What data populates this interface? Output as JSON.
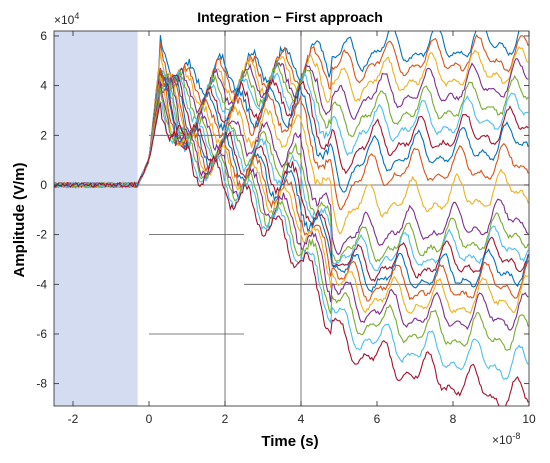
{
  "chart_data": {
    "type": "line",
    "title": "Integration −  First approach",
    "xlabel": "Time (s)",
    "ylabel": "Amplitude (V/m)",
    "x_multiplier": "×10",
    "x_exponent": "-8",
    "y_multiplier": "×10",
    "y_exponent": "4",
    "xlim": [
      -2.5,
      10
    ],
    "ylim": [
      -8.9,
      6.2
    ],
    "x_ticks": [
      -2,
      0,
      2,
      4,
      6,
      8,
      10
    ],
    "y_ticks": [
      -8,
      -6,
      -4,
      -2,
      0,
      2,
      4,
      6
    ],
    "x_tick_labels": [
      "-2",
      "0",
      "2",
      "4",
      "6",
      "8",
      "10"
    ],
    "y_tick_labels": [
      "-8",
      "-6",
      "-4",
      "-2",
      "0",
      "2",
      "4",
      "6"
    ],
    "shaded_region": {
      "x": [
        -2.5,
        -0.3
      ],
      "color": "#d3dcf1"
    },
    "reference_lines": [
      {
        "x": [
          -0.3,
          10
        ],
        "y": 0
      },
      {
        "x": [
          0,
          2.5
        ],
        "y": 2
      },
      {
        "x": [
          0,
          2.5
        ],
        "y": -2
      },
      {
        "x": [
          2.5,
          10
        ],
        "y": -4
      },
      {
        "x": [
          0,
          2.5
        ],
        "y": -6
      }
    ],
    "vertical_lines": [
      2,
      4
    ],
    "grid": false,
    "legend": "none",
    "series_colors": [
      "#0072bd",
      "#d95319",
      "#edb120",
      "#7e2f8e",
      "#77ac30",
      "#4dbeee",
      "#a2142f"
    ],
    "series": [
      {
        "x": [
          -2.5,
          -0.3,
          0,
          0.3,
          1,
          2,
          3,
          4,
          5,
          6,
          8,
          10
        ],
        "values": [
          0,
          0,
          1,
          5.4,
          4.2,
          4.5,
          4.8,
          5.0,
          5.1,
          5.5,
          5.6,
          6.0
        ]
      },
      {
        "x": [
          -2.5,
          -0.3,
          0,
          0.3,
          1,
          2,
          3,
          4,
          5,
          6,
          8,
          10
        ],
        "values": [
          0,
          0,
          1,
          5.3,
          4.0,
          4.3,
          4.6,
          4.9,
          4.6,
          5.0,
          5.1,
          5.3
        ]
      },
      {
        "x": [
          -2.5,
          -0.3,
          0,
          0.3,
          1,
          2,
          3,
          4,
          5,
          6,
          8,
          10
        ],
        "values": [
          0,
          0,
          1,
          5.2,
          3.8,
          4.1,
          4.4,
          4.6,
          3.9,
          4.3,
          4.5,
          4.8
        ]
      },
      {
        "x": [
          -2.5,
          -0.3,
          0,
          0.3,
          1,
          2,
          3,
          4,
          5,
          6,
          8,
          10
        ],
        "values": [
          0,
          0,
          1,
          5.0,
          3.6,
          3.9,
          4.2,
          4.4,
          3.2,
          3.7,
          3.9,
          4.3
        ]
      },
      {
        "x": [
          -2.5,
          -0.3,
          0,
          0.3,
          1,
          2,
          3,
          4,
          5,
          6,
          8,
          10
        ],
        "values": [
          0,
          0,
          1,
          4.9,
          3.4,
          3.7,
          4.0,
          4.2,
          2.5,
          3.0,
          3.2,
          3.6
        ]
      },
      {
        "x": [
          -2.5,
          -0.3,
          0,
          0.3,
          1,
          2,
          3,
          4,
          5,
          6,
          8,
          10
        ],
        "values": [
          0,
          0,
          1,
          4.8,
          3.2,
          3.5,
          3.7,
          3.9,
          1.8,
          2.4,
          2.6,
          3.0
        ]
      },
      {
        "x": [
          -2.5,
          -0.3,
          0,
          0.3,
          1,
          2,
          3,
          4,
          5,
          6,
          8,
          10
        ],
        "values": [
          0,
          0,
          1,
          4.7,
          3.0,
          3.2,
          3.4,
          3.6,
          1.1,
          1.8,
          2.0,
          2.4
        ]
      },
      {
        "x": [
          -2.5,
          -0.3,
          0,
          0.3,
          1,
          2,
          3,
          4,
          5,
          6,
          8,
          10
        ],
        "values": [
          0,
          0,
          1,
          4.6,
          2.8,
          3.0,
          3.1,
          3.2,
          0.4,
          1.2,
          1.4,
          1.8
        ]
      },
      {
        "x": [
          -2.5,
          -0.3,
          0,
          0.3,
          1,
          2,
          3,
          4,
          5,
          6,
          8,
          10
        ],
        "values": [
          0,
          0,
          1,
          4.5,
          2.6,
          2.7,
          2.8,
          2.8,
          -0.3,
          0.6,
          0.7,
          0.9
        ]
      },
      {
        "x": [
          -2.5,
          -0.3,
          0,
          0.3,
          1,
          2,
          3,
          4,
          5,
          6,
          8,
          10
        ],
        "values": [
          0,
          0,
          1,
          4.4,
          2.4,
          2.4,
          2.3,
          2.1,
          -1.2,
          -0.6,
          -0.5,
          -0.1
        ]
      },
      {
        "x": [
          -2.5,
          -0.3,
          0,
          0.3,
          1,
          2,
          3,
          4,
          5,
          6,
          8,
          10
        ],
        "values": [
          0,
          0,
          1,
          4.3,
          2.2,
          2.1,
          1.8,
          1.3,
          -2.2,
          -1.8,
          -1.6,
          -1.2
        ]
      },
      {
        "x": [
          -2.5,
          -0.3,
          0,
          0.3,
          1,
          2,
          3,
          4,
          5,
          6,
          8,
          10
        ],
        "values": [
          0,
          0,
          1,
          4.2,
          2.0,
          1.8,
          1.4,
          0.7,
          -2.6,
          -2.4,
          -2.2,
          -1.8
        ]
      },
      {
        "x": [
          -2.5,
          -0.3,
          0,
          0.3,
          1,
          2,
          3,
          4,
          5,
          6,
          8,
          10
        ],
        "values": [
          0,
          0,
          1,
          4.1,
          1.9,
          1.6,
          1.1,
          0.3,
          -2.9,
          -2.8,
          -2.7,
          -2.3
        ]
      },
      {
        "x": [
          -2.5,
          -0.3,
          0,
          0.3,
          1,
          2,
          3,
          4,
          5,
          6,
          8,
          10
        ],
        "values": [
          0,
          0,
          1,
          4.0,
          1.8,
          1.4,
          0.8,
          -0.1,
          -3.2,
          -3.2,
          -3.1,
          -2.8
        ]
      },
      {
        "x": [
          -2.5,
          -0.3,
          0,
          0.3,
          1,
          2,
          3,
          4,
          5,
          6,
          8,
          10
        ],
        "values": [
          0,
          0,
          1,
          3.9,
          1.7,
          1.2,
          0.5,
          -0.5,
          -3.5,
          -3.6,
          -3.6,
          -3.3
        ]
      },
      {
        "x": [
          -2.5,
          -0.3,
          0,
          0.3,
          1,
          2,
          3,
          4,
          5,
          6,
          8,
          10
        ],
        "values": [
          0,
          0,
          1,
          3.8,
          1.6,
          1.0,
          0.2,
          -0.9,
          -3.8,
          -4.0,
          -4.1,
          -3.8
        ]
      },
      {
        "x": [
          -2.5,
          -0.3,
          0,
          0.3,
          1,
          2,
          3,
          4,
          5,
          6,
          8,
          10
        ],
        "values": [
          0,
          0,
          1,
          3.7,
          1.5,
          0.8,
          -0.1,
          -1.3,
          -4.1,
          -4.5,
          -4.7,
          -4.4
        ]
      },
      {
        "x": [
          -2.5,
          -0.3,
          0,
          0.3,
          1,
          2,
          3,
          4,
          5,
          6,
          8,
          10
        ],
        "values": [
          0,
          0,
          1,
          3.6,
          1.4,
          0.6,
          -0.4,
          -1.7,
          -4.5,
          -5.0,
          -5.3,
          -5.1
        ]
      },
      {
        "x": [
          -2.5,
          -0.3,
          0,
          0.3,
          1,
          2,
          3,
          4,
          5,
          6,
          8,
          10
        ],
        "values": [
          0,
          0,
          1,
          3.5,
          1.3,
          0.4,
          -0.7,
          -2.1,
          -5.0,
          -5.6,
          -6.0,
          -6.0
        ]
      },
      {
        "x": [
          -2.5,
          -0.3,
          0,
          0.3,
          1,
          2,
          3,
          4,
          5,
          6,
          8,
          10
        ],
        "values": [
          0,
          0,
          1,
          3.4,
          1.2,
          0.2,
          -1.0,
          -2.5,
          -5.6,
          -6.3,
          -6.9,
          -7.3
        ]
      },
      {
        "x": [
          -2.5,
          -0.3,
          0,
          0.3,
          1,
          2,
          3,
          4,
          5,
          6,
          8,
          10
        ],
        "values": [
          0,
          0,
          1,
          3.3,
          1.1,
          0.0,
          -1.3,
          -2.9,
          -6.2,
          -7.0,
          -7.9,
          -8.7
        ]
      }
    ]
  }
}
